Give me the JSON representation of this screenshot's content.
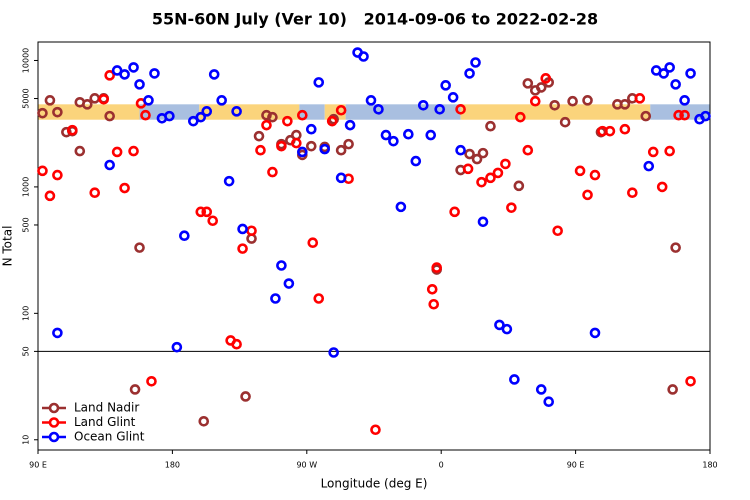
{
  "chart_data": {
    "type": "scatter",
    "title": "55N-60N July (Ver 10)   2014-09-06 to 2022-02-28",
    "x_label": "Longitude (deg E)",
    "y_label": "N Total",
    "xlim": [
      90,
      540
    ],
    "xticks": [
      {
        "value": 90,
        "label": "90 E"
      },
      180,
      {
        "value": 270,
        "label": "90 W"
      },
      {
        "value": 360,
        "label": "0"
      },
      {
        "value": 450,
        "label": "90 E"
      },
      {
        "value": 540,
        "label": "180"
      }
    ],
    "ylim": [
      8.3,
      14000
    ],
    "log_y": true,
    "yticks": [
      10,
      50,
      100,
      500,
      1000,
      5000,
      10000
    ],
    "hline": 50,
    "legend": "lower left",
    "band": {
      "ylim": [
        3400,
        4500
      ],
      "segments": [
        {
          "x": [
            90,
            158
          ],
          "color": "#fbd47c"
        },
        {
          "x": [
            158,
            198
          ],
          "color": "#a9bfe0"
        },
        {
          "x": [
            198,
            265
          ],
          "color": "#fbd47c"
        },
        {
          "x": [
            265,
            282
          ],
          "color": "#a9bfe0"
        },
        {
          "x": [
            282,
            296
          ],
          "color": "#fbd47c"
        },
        {
          "x": [
            296,
            373
          ],
          "color": "#a9bfe0"
        },
        {
          "x": [
            373,
            500
          ],
          "color": "#fbd47c"
        },
        {
          "x": [
            500,
            540
          ],
          "color": "#a9bfe0"
        }
      ]
    },
    "series": [
      {
        "name": "Land Nadir",
        "color": "#9b3030",
        "x": [
          93,
          98,
          103,
          109,
          113,
          118,
          118,
          123,
          128,
          134,
          138,
          158,
          155,
          201,
          229,
          233,
          238,
          243,
          247,
          253,
          259,
          263,
          267,
          273,
          282,
          288,
          293,
          298,
          357,
          373,
          379,
          384,
          388,
          393,
          412,
          418,
          423,
          427,
          432,
          436,
          443,
          448,
          458,
          467,
          478,
          483,
          488,
          497,
          517,
          515
        ],
        "values": [
          3830,
          4840,
          3900,
          2710,
          2760,
          4670,
          1920,
          4500,
          5020,
          5020,
          3630,
          331,
          25,
          14,
          22,
          390,
          2520,
          3690,
          3560,
          2180,
          2340,
          2570,
          1790,
          2100,
          2070,
          3430,
          1950,
          2180,
          222,
          1360,
          1820,
          1660,
          1850,
          3020,
          1020,
          6590,
          5800,
          6120,
          6710,
          4420,
          3250,
          4760,
          4840,
          2710,
          4500,
          4500,
          5020,
          3630,
          331,
          25
        ]
      },
      {
        "name": "Land Glint",
        "color": "#ff0000",
        "x": [
          93,
          98,
          103,
          113,
          128,
          134,
          138,
          143,
          148,
          154,
          159,
          162,
          166,
          199,
          203,
          207,
          219,
          223,
          227,
          233,
          239,
          243,
          247,
          253,
          257,
          263,
          267,
          274,
          278,
          287,
          293,
          298,
          316,
          354,
          355,
          357,
          369,
          373,
          378,
          387,
          393,
          398,
          403,
          407,
          413,
          418,
          430,
          423,
          438,
          453,
          458,
          463,
          468,
          473,
          483,
          488,
          493,
          502,
          508,
          513,
          519,
          523,
          527
        ],
        "values": [
          1340,
          850,
          1240,
          2810,
          900,
          4930,
          7630,
          1890,
          980,
          1920,
          4580,
          3690,
          29,
          635,
          635,
          540,
          61,
          57,
          325,
          450,
          1950,
          3080,
          1310,
          2100,
          3310,
          2220,
          3690,
          362,
          131,
          3310,
          4040,
          1160,
          12,
          155,
          118,
          230,
          635,
          4110,
          1390,
          1090,
          1180,
          1290,
          1520,
          685,
          3560,
          1950,
          7220,
          4760,
          450,
          1340,
          865,
          1240,
          2760,
          2760,
          2860,
          900,
          5020,
          1890,
          1000,
          1920,
          3690,
          3690,
          29
        ]
      },
      {
        "name": "Ocean Glint",
        "color": "#0000ff",
        "x": [
          103,
          138,
          143,
          148,
          154,
          158,
          164,
          168,
          173,
          178,
          183,
          188,
          194,
          199,
          203,
          208,
          213,
          218,
          223,
          227,
          249,
          253,
          258,
          267,
          273,
          278,
          282,
          288,
          293,
          299,
          304,
          308,
          313,
          318,
          323,
          328,
          333,
          338,
          343,
          348,
          353,
          359,
          363,
          368,
          373,
          379,
          383,
          388,
          399,
          404,
          409,
          427,
          432,
          463,
          499,
          504,
          509,
          513,
          517,
          523,
          527,
          533,
          537
        ],
        "values": [
          70,
          1490,
          8340,
          7760,
          8810,
          6470,
          4840,
          7900,
          3490,
          3630,
          54,
          411,
          3310,
          3560,
          3960,
          7760,
          4840,
          1110,
          3960,
          465,
          131,
          239,
          172,
          1890,
          2860,
          6710,
          1990,
          49,
          1180,
          3080,
          11560,
          10750,
          4840,
          4110,
          2570,
          2300,
          695,
          2610,
          1600,
          4420,
          2570,
          4110,
          6360,
          5110,
          1950,
          7900,
          9640,
          530,
          81,
          75,
          30,
          25,
          20,
          70,
          1460,
          8340,
          7900,
          8810,
          6470,
          4840,
          7900,
          3430,
          3630
        ]
      }
    ]
  }
}
